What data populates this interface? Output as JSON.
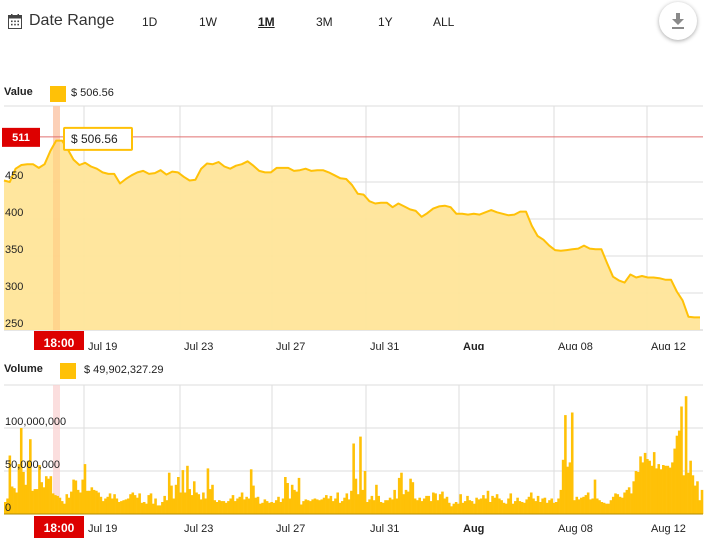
{
  "toolbar": {
    "date_range_label": "Date Range",
    "ranges": [
      {
        "label": "1D",
        "active": false
      },
      {
        "label": "1W",
        "active": false
      },
      {
        "label": "1M",
        "active": true
      },
      {
        "label": "3M",
        "active": false
      },
      {
        "label": "1Y",
        "active": false
      },
      {
        "label": "ALL",
        "active": false
      }
    ],
    "download_icon": "download-icon"
  },
  "value_legend": {
    "title": "Value",
    "value": "$ 506.56"
  },
  "volume_legend": {
    "title": "Volume",
    "value": "$ 49,902,327.29"
  },
  "crosshair": {
    "time_label": "18:00",
    "price_label": "511",
    "tooltip": "$ 506.56"
  },
  "colors": {
    "accent": "#FFC107",
    "area_fill": "#FFE599",
    "marker_red": "#DD0000",
    "grid": "#DDDDDD"
  },
  "chart_data": [
    {
      "type": "area",
      "title": "Value",
      "xlabel": "",
      "ylabel": "",
      "x_ticks": [
        "Jul 19",
        "Jul 23",
        "Jul 27",
        "Jul 31",
        "Aug",
        "Aug 08",
        "Aug 12"
      ],
      "y_ticks": [
        250,
        300,
        350,
        400,
        450
      ],
      "ylim": [
        250,
        550
      ],
      "grid": true,
      "reference_line": 511,
      "series": [
        {
          "name": "Value",
          "values": [
            452,
            450,
            468,
            473,
            474,
            474,
            469,
            474,
            492,
            506,
            506,
            494,
            480,
            473,
            476,
            471,
            468,
            463,
            461,
            461,
            448,
            454,
            459,
            463,
            465,
            461,
            462,
            466,
            460,
            464,
            463,
            457,
            452,
            453,
            468,
            475,
            474,
            477,
            471,
            468,
            472,
            474,
            478,
            472,
            465,
            463,
            463,
            469,
            469,
            469,
            465,
            466,
            468,
            465,
            466,
            466,
            463,
            459,
            455,
            454,
            446,
            434,
            433,
            424,
            421,
            422,
            422,
            416,
            421,
            417,
            413,
            411,
            403,
            408,
            414,
            417,
            418,
            416,
            407,
            407,
            406,
            407,
            406,
            409,
            412,
            409,
            407,
            405,
            406,
            410,
            410,
            391,
            377,
            372,
            364,
            358,
            357,
            358,
            359,
            360,
            364,
            360,
            359,
            359,
            340,
            322,
            317,
            314,
            325,
            321,
            323,
            321,
            321,
            320,
            318,
            318,
            302,
            290,
            268,
            267,
            267
          ]
        }
      ]
    },
    {
      "type": "bar",
      "title": "Volume",
      "xlabel": "",
      "ylabel": "",
      "x_ticks": [
        "Jul 19",
        "Jul 23",
        "Jul 27",
        "Jul 31",
        "Aug",
        "Aug 08",
        "Aug 12"
      ],
      "y_ticks": [
        "0",
        "50,000,000",
        "100,000,000"
      ],
      "ylim": [
        0,
        150000000
      ],
      "grid": true,
      "series": [
        {
          "name": "Volume",
          "values": [
            14,
            18,
            68,
            32,
            30,
            25,
            58,
            100,
            49,
            34,
            62,
            87,
            27,
            29,
            29,
            57,
            37,
            31,
            44,
            41,
            44,
            24,
            22,
            21,
            19,
            15,
            12,
            23,
            19,
            26,
            40,
            39,
            28,
            25,
            40,
            58,
            27,
            27,
            31,
            28,
            27,
            25,
            20,
            15,
            18,
            20,
            24,
            18,
            23,
            18,
            14,
            15,
            16,
            17,
            18,
            23,
            25,
            22,
            19,
            24,
            13,
            14,
            12,
            22,
            24,
            12,
            18,
            10,
            10,
            14,
            21,
            16,
            48,
            33,
            18,
            34,
            43,
            25,
            51,
            25,
            56,
            29,
            22,
            38,
            25,
            23,
            17,
            25,
            18,
            53,
            29,
            34,
            16,
            14,
            16,
            15,
            15,
            13,
            15,
            18,
            22,
            15,
            18,
            20,
            25,
            17,
            20,
            18,
            52,
            33,
            19,
            20,
            12,
            13,
            17,
            15,
            13,
            14,
            13,
            16,
            20,
            14,
            18,
            43,
            36,
            18,
            34,
            28,
            26,
            42,
            11,
            15,
            17,
            16,
            15,
            17,
            18,
            17,
            16,
            17,
            19,
            22,
            18,
            21,
            15,
            18,
            25,
            13,
            15,
            19,
            24,
            17,
            27,
            82,
            41,
            23,
            90,
            28,
            50,
            14,
            17,
            21,
            16,
            34,
            21,
            14,
            13,
            16,
            16,
            19,
            17,
            28,
            18,
            42,
            48,
            23,
            28,
            26,
            41,
            37,
            18,
            16,
            19,
            15,
            18,
            21,
            21,
            15,
            25,
            24,
            16,
            23,
            26,
            18,
            20,
            13,
            9,
            12,
            14,
            12,
            23,
            13,
            15,
            21,
            16,
            15,
            12,
            19,
            17,
            18,
            22,
            18,
            27,
            14,
            21,
            19,
            23,
            18,
            16,
            13,
            12,
            18,
            24,
            12,
            15,
            19,
            15,
            14,
            13,
            17,
            20,
            25,
            18,
            15,
            21,
            14,
            18,
            19,
            13,
            16,
            18,
            13,
            14,
            18,
            28,
            63,
            115,
            55,
            60,
            118,
            16,
            20,
            17,
            19,
            20,
            22,
            25,
            17,
            18,
            40,
            18,
            16,
            14,
            13,
            12,
            12,
            16,
            20,
            24,
            23,
            20,
            19,
            25,
            28,
            31,
            24,
            38,
            50,
            49,
            67,
            60,
            71,
            64,
            62,
            56,
            72,
            53,
            58,
            52,
            57,
            56,
            56,
            54,
            60,
            76,
            91,
            97,
            125,
            45,
            137,
            48,
            62,
            45,
            33,
            38,
            16,
            28
          ]
        }
      ]
    }
  ]
}
